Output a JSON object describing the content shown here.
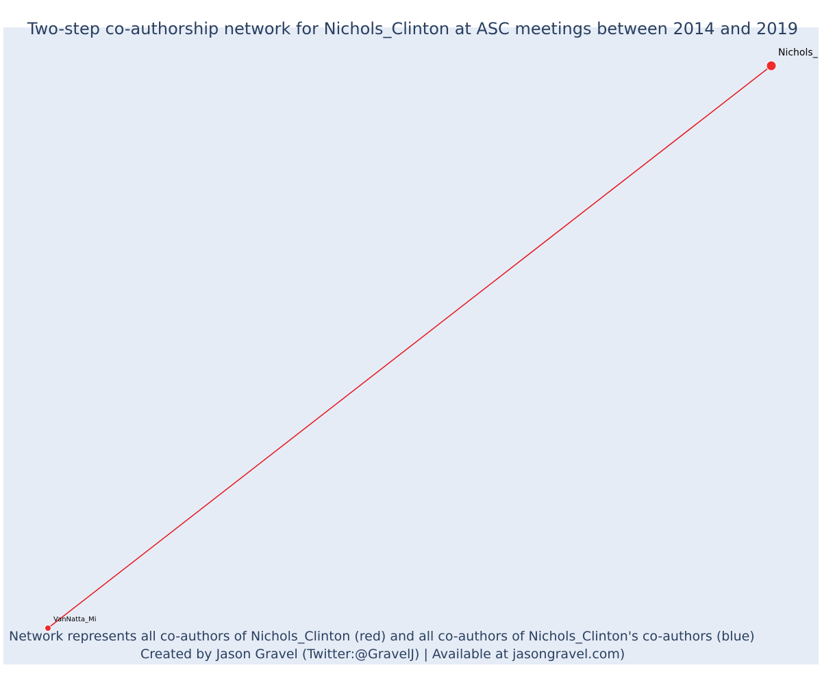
{
  "title": "Two-step co-authorship network for Nichols_Clinton at ASC meetings between 2014 and 2019",
  "footer": {
    "line1": "Network represents all co-authors of Nichols_Clinton (red) and all co-authors of Nichols_Clinton's co-authors (blue)",
    "line2": "Created by Jason Gravel (Twitter:@GravelJ) | Available at jasongravel.com)"
  },
  "colors": {
    "background": "#e5ecf6",
    "text": "#2a3f5f",
    "ego": "#ef2b2b",
    "alter": "#ef2b2b",
    "edge": "#e8141c"
  },
  "network": {
    "nodes": [
      {
        "id": "nichols",
        "label": "Nichols_",
        "role": "ego"
      },
      {
        "id": "vannatta",
        "label": "VanNatta_Mi",
        "role": "co-author"
      }
    ],
    "edges": [
      {
        "source": "nichols",
        "target": "vannatta"
      }
    ]
  }
}
